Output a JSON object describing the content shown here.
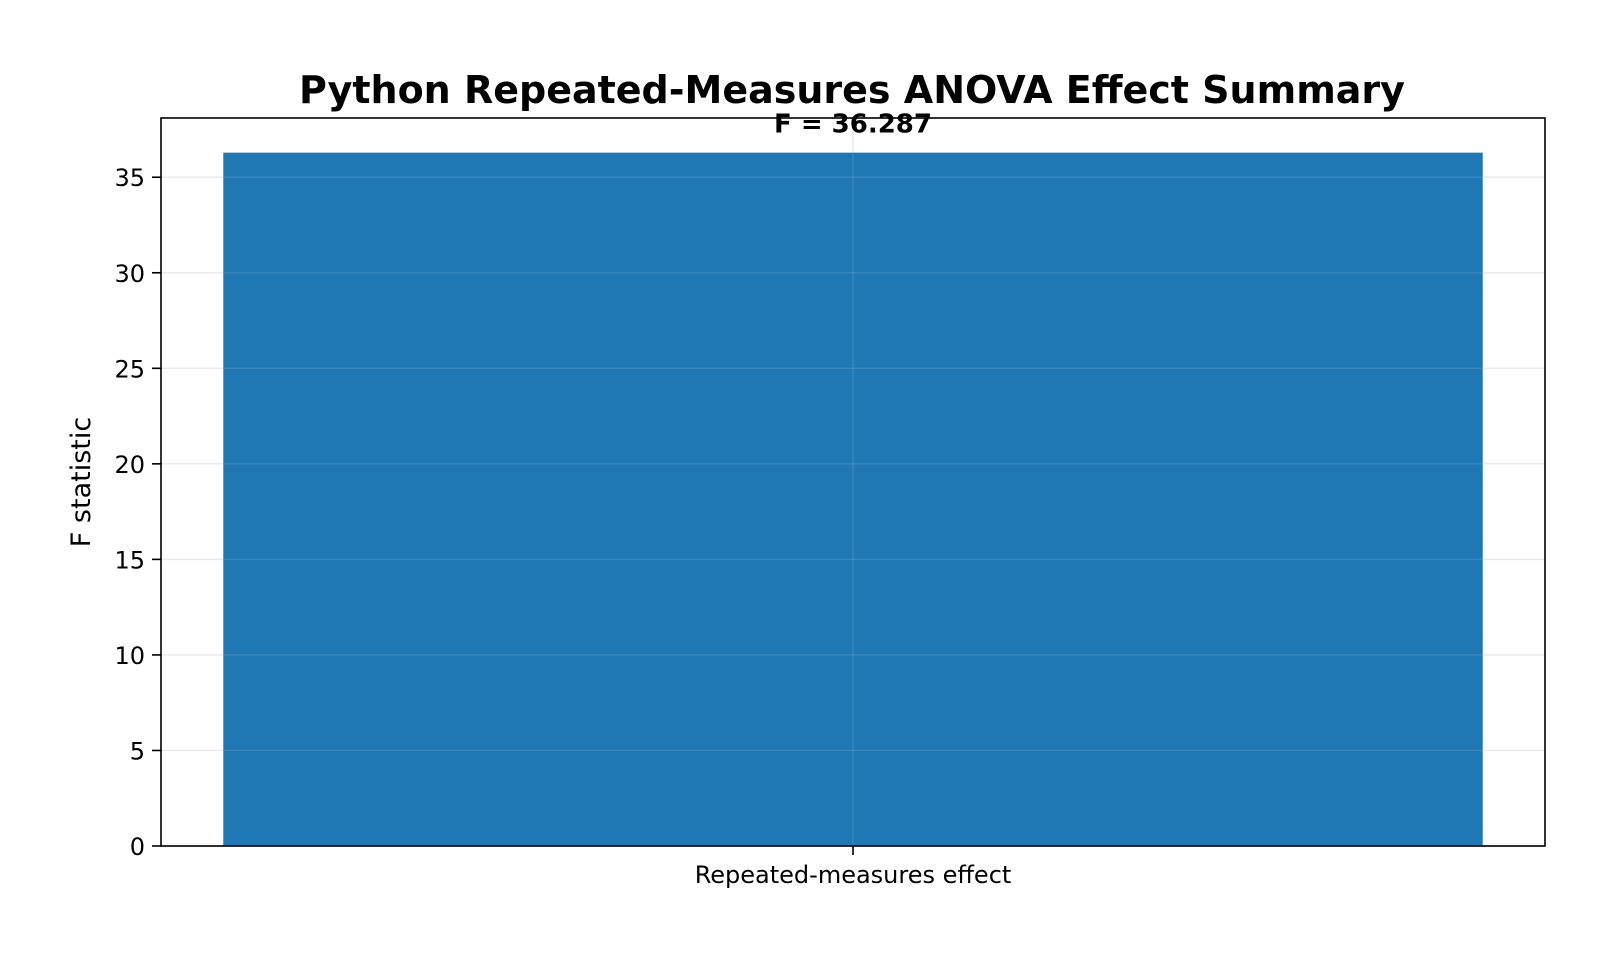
{
  "chart_data": {
    "type": "bar",
    "title": "Python Repeated-Measures ANOVA Effect Summary",
    "xlabel": "",
    "ylabel": "F statistic",
    "categories": [
      "Repeated-measures effect"
    ],
    "values": [
      36.287
    ],
    "data_labels": [
      "F = 36.287"
    ],
    "ylim": [
      0,
      38.1
    ],
    "yticks": [
      0,
      5,
      10,
      15,
      20,
      25,
      30,
      35
    ],
    "grid": true,
    "legend": "none",
    "colors": {
      "bar": "#1f77b4",
      "grid": "#e6e6e6",
      "axis": "#000000"
    }
  }
}
